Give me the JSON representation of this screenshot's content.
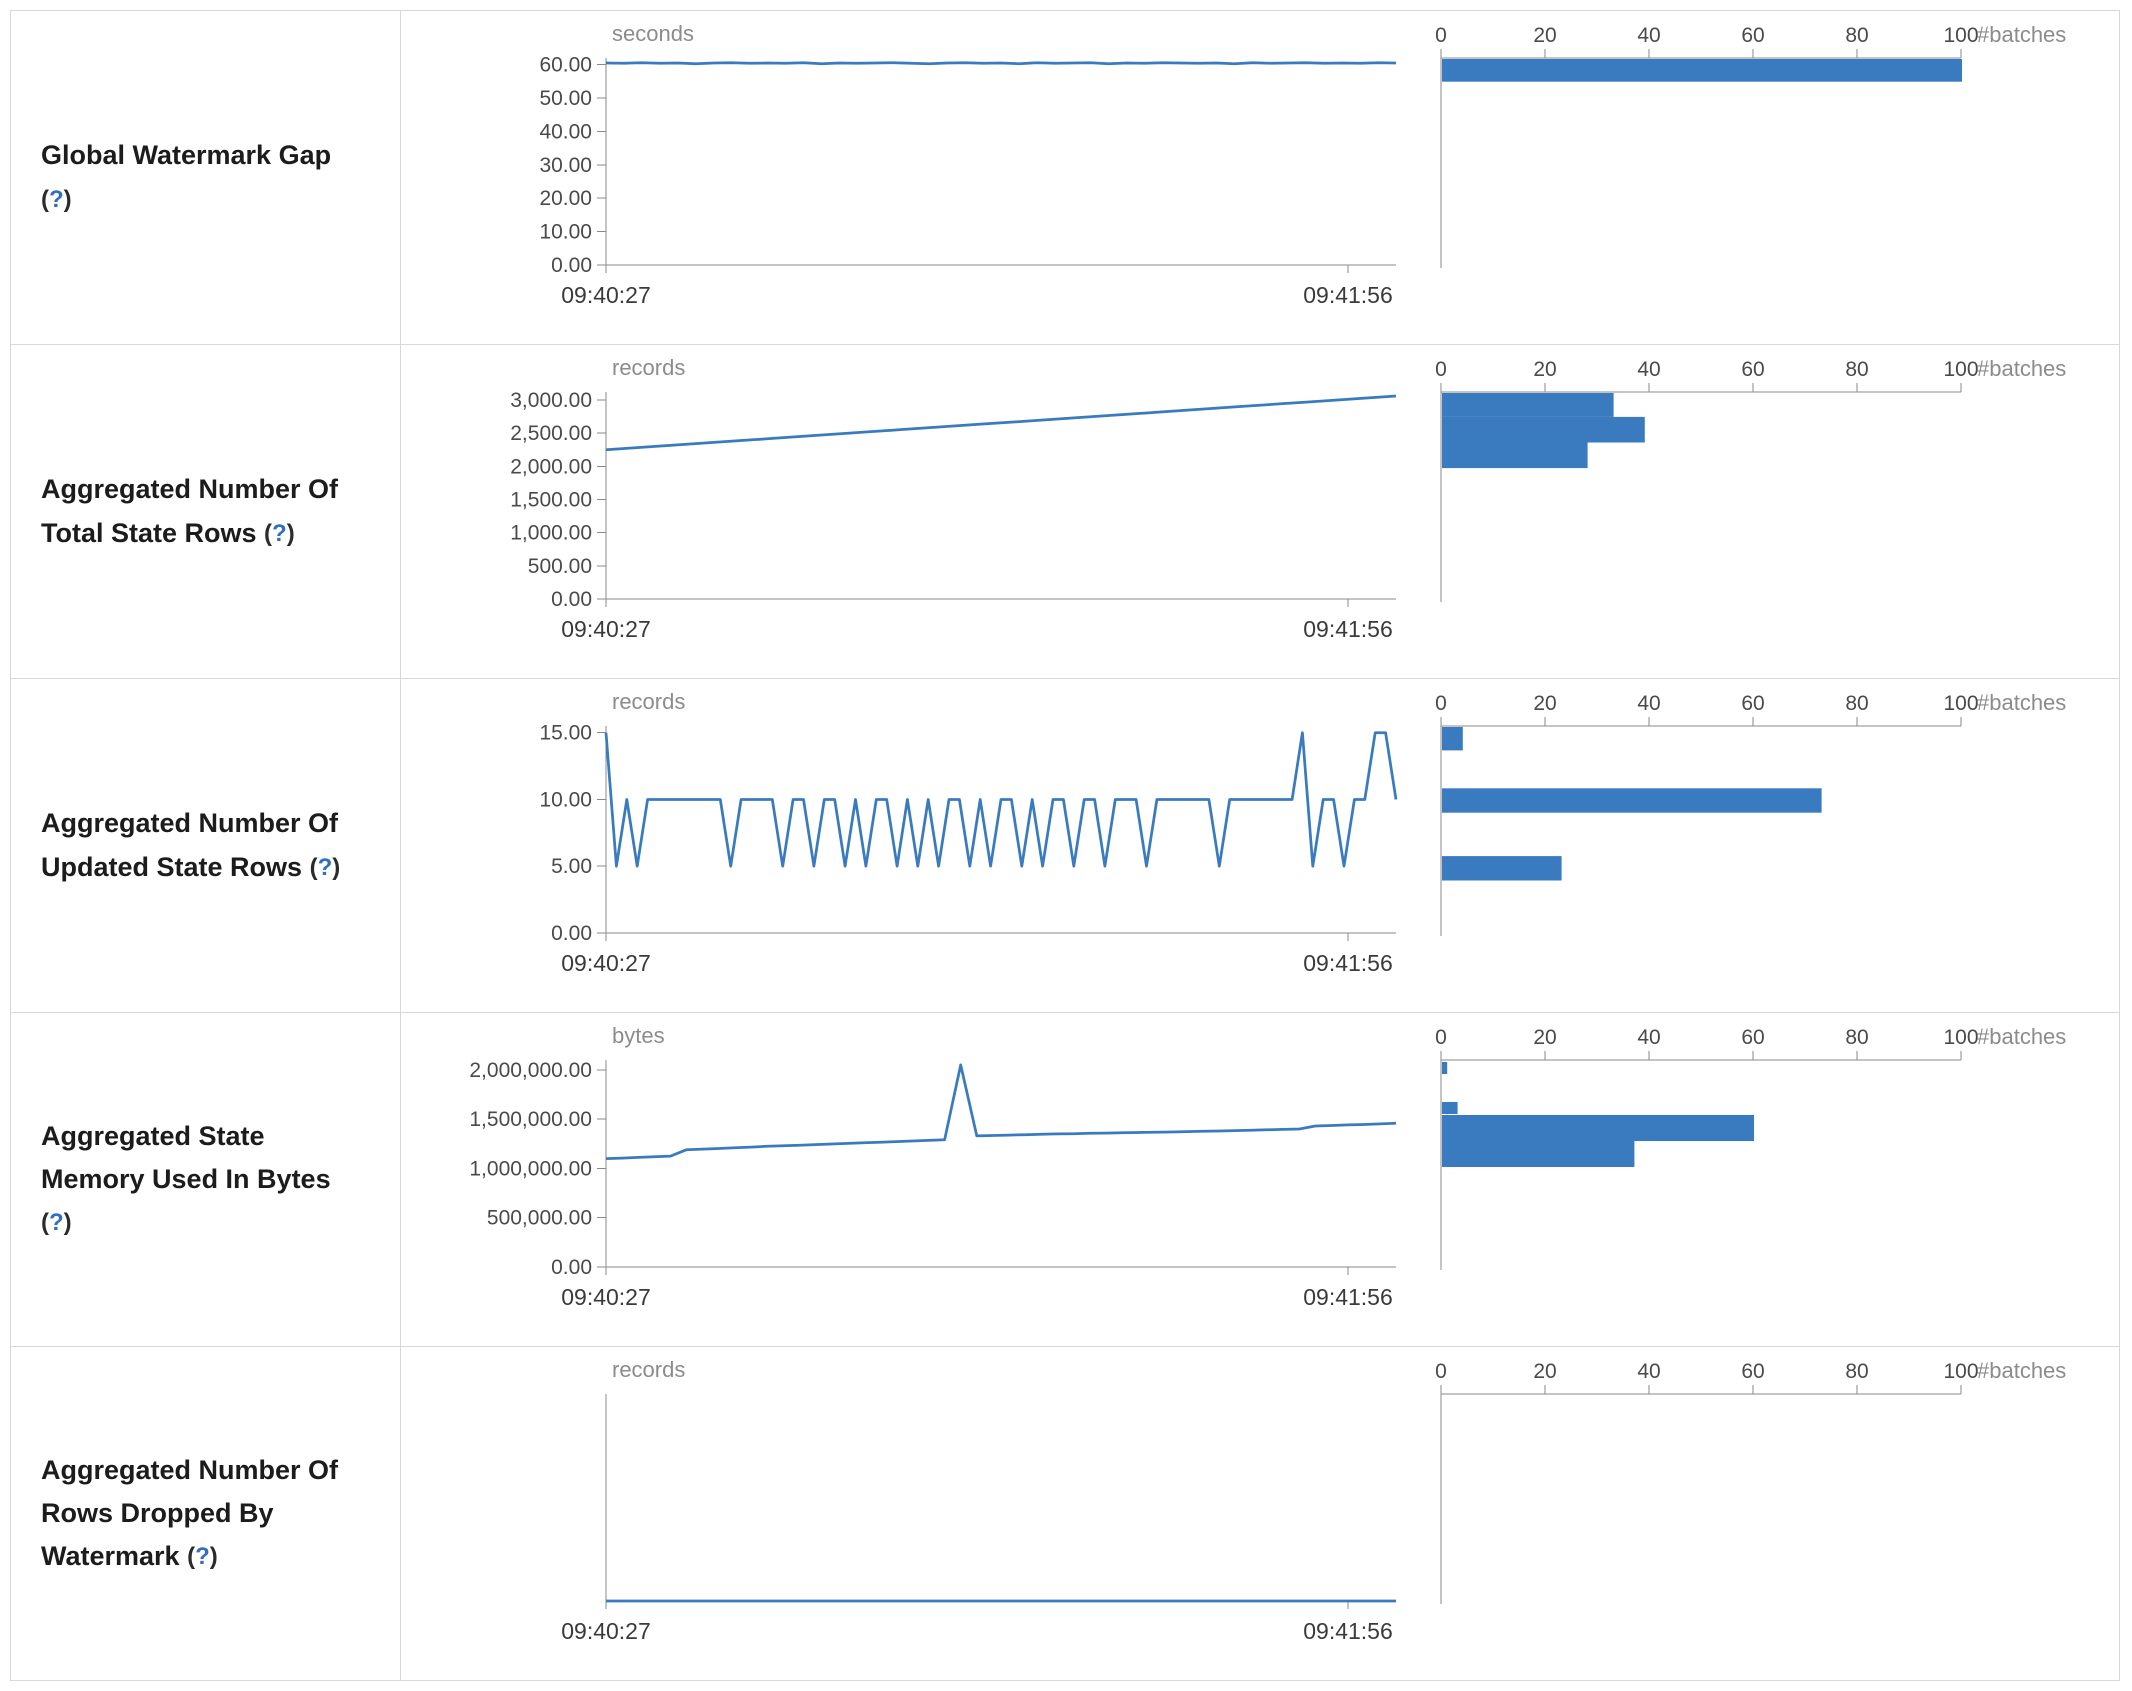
{
  "colors": {
    "accent": "#3a7bbf",
    "axis": "#8a8a8a"
  },
  "ui": {
    "help_open": "(",
    "help_q": "?",
    "help_close": ")"
  },
  "rows": [
    {
      "name": "Global Watermark Gap",
      "timeline": {
        "type": "line",
        "unit": "seconds",
        "ylim": [
          0,
          62
        ],
        "yticks": [
          {
            "v": 60,
            "label": "60.00"
          },
          {
            "v": 50,
            "label": "50.00"
          },
          {
            "v": 40,
            "label": "40.00"
          },
          {
            "v": 30,
            "label": "30.00"
          },
          {
            "v": 20,
            "label": "20.00"
          },
          {
            "v": 10,
            "label": "10.00"
          },
          {
            "v": 0,
            "label": "0.00"
          }
        ],
        "x_start": "09:40:27",
        "x_end": "09:41:56",
        "values": [
          60.5,
          60.4,
          60.6,
          60.4,
          60.5,
          60.3,
          60.5,
          60.6,
          60.4,
          60.5,
          60.4,
          60.6,
          60.3,
          60.5,
          60.4,
          60.5,
          60.6,
          60.4,
          60.3,
          60.5,
          60.6,
          60.4,
          60.5,
          60.3,
          60.6,
          60.4,
          60.5,
          60.6,
          60.3,
          60.5,
          60.4,
          60.6,
          60.5,
          60.4,
          60.5,
          60.3,
          60.6,
          60.4,
          60.5,
          60.6,
          60.4,
          60.5,
          60.4,
          60.6,
          60.5
        ]
      },
      "histogram": {
        "type": "bar",
        "xlabel": "#batches",
        "xticks": [
          0,
          20,
          40,
          60,
          80,
          100
        ],
        "ylim": [
          0,
          62
        ],
        "bars": [
          {
            "value": 58.5,
            "bin": 7,
            "count": 100
          }
        ]
      }
    },
    {
      "name": "Aggregated Number Of Total State Rows",
      "timeline": {
        "type": "line",
        "unit": "records",
        "ylim": [
          0,
          3120
        ],
        "yticks": [
          {
            "v": 3000,
            "label": "3,000.00"
          },
          {
            "v": 2500,
            "label": "2,500.00"
          },
          {
            "v": 2000,
            "label": "2,000.00"
          },
          {
            "v": 1500,
            "label": "1,500.00"
          },
          {
            "v": 1000,
            "label": "1,000.00"
          },
          {
            "v": 500,
            "label": "500.00"
          },
          {
            "v": 0,
            "label": "0.00"
          }
        ],
        "x_start": "09:40:27",
        "x_end": "09:41:56",
        "values": [
          2250,
          2280,
          2310,
          2340,
          2370,
          2400,
          2430,
          2460,
          2490,
          2520,
          2550,
          2580,
          2610,
          2640,
          2670,
          2700,
          2730,
          2760,
          2790,
          2820,
          2850,
          2880,
          2910,
          2940,
          2970,
          3000,
          3030,
          3060
        ]
      },
      "histogram": {
        "type": "bar",
        "xlabel": "#batches",
        "xticks": [
          0,
          20,
          40,
          60,
          80,
          100
        ],
        "ylim": [
          0,
          3120
        ],
        "bars": [
          {
            "value": 2940,
            "bin": 380,
            "count": 33
          },
          {
            "value": 2560,
            "bin": 380,
            "count": 39
          },
          {
            "value": 2180,
            "bin": 380,
            "count": 28
          }
        ]
      }
    },
    {
      "name": "Aggregated Number Of Updated State Rows",
      "timeline": {
        "type": "line",
        "unit": "records",
        "ylim": [
          0,
          15.5
        ],
        "yticks": [
          {
            "v": 15,
            "label": "15.00"
          },
          {
            "v": 10,
            "label": "10.00"
          },
          {
            "v": 5,
            "label": "5.00"
          },
          {
            "v": 0,
            "label": "0.00"
          }
        ],
        "x_start": "09:40:27",
        "x_end": "09:41:56",
        "values": [
          15,
          5,
          10,
          5,
          10,
          10,
          10,
          10,
          10,
          10,
          10,
          10,
          5,
          10,
          10,
          10,
          10,
          5,
          10,
          10,
          5,
          10,
          10,
          5,
          10,
          5,
          10,
          10,
          5,
          10,
          5,
          10,
          5,
          10,
          10,
          5,
          10,
          5,
          10,
          10,
          5,
          10,
          5,
          10,
          10,
          5,
          10,
          10,
          5,
          10,
          10,
          10,
          5,
          10,
          10,
          10,
          10,
          10,
          10,
          5,
          10,
          10,
          10,
          10,
          10,
          10,
          10,
          15,
          5,
          10,
          10,
          5,
          10,
          10,
          15,
          15,
          10
        ]
      },
      "histogram": {
        "type": "bar",
        "xlabel": "#batches",
        "xticks": [
          0,
          20,
          40,
          60,
          80,
          100
        ],
        "ylim": [
          0,
          15.5
        ],
        "bars": [
          {
            "value": 14.6,
            "bin": 1.8,
            "count": 4
          },
          {
            "value": 10,
            "bin": 1.8,
            "count": 73
          },
          {
            "value": 5,
            "bin": 1.8,
            "count": 23
          }
        ]
      }
    },
    {
      "name": "Aggregated State Memory Used In Bytes",
      "timeline": {
        "type": "line",
        "unit": "bytes",
        "ylim": [
          0,
          2100000
        ],
        "yticks": [
          {
            "v": 2000000,
            "label": "2,000,000.00"
          },
          {
            "v": 1500000,
            "label": "1,500,000.00"
          },
          {
            "v": 1000000,
            "label": "1,000,000.00"
          },
          {
            "v": 500000,
            "label": "500,000.00"
          },
          {
            "v": 0,
            "label": "0.00"
          }
        ],
        "x_start": "09:40:27",
        "x_end": "09:41:56",
        "values": [
          1100000,
          1105000,
          1112000,
          1118000,
          1125000,
          1190000,
          1196000,
          1202000,
          1210000,
          1216000,
          1224000,
          1230000,
          1236000,
          1242000,
          1248000,
          1254000,
          1260000,
          1266000,
          1272000,
          1278000,
          1284000,
          1290000,
          2050000,
          1330000,
          1334000,
          1338000,
          1342000,
          1346000,
          1350000,
          1352000,
          1356000,
          1358000,
          1362000,
          1364000,
          1368000,
          1370000,
          1374000,
          1378000,
          1380000,
          1384000,
          1388000,
          1392000,
          1396000,
          1400000,
          1430000,
          1436000,
          1442000,
          1446000,
          1452000,
          1458000
        ]
      },
      "histogram": {
        "type": "bar",
        "xlabel": "#batches",
        "xticks": [
          0,
          20,
          40,
          60,
          80,
          100
        ],
        "ylim": [
          0,
          2100000
        ],
        "bars": [
          {
            "value": 2020000,
            "bin": 120000,
            "count": 1
          },
          {
            "value": 1620000,
            "bin": 120000,
            "count": 3
          },
          {
            "value": 1420000,
            "bin": 260000,
            "count": 60
          },
          {
            "value": 1160000,
            "bin": 260000,
            "count": 37
          }
        ]
      }
    },
    {
      "name": "Aggregated Number Of Rows Dropped By Watermark",
      "timeline": {
        "type": "line",
        "unit": "records",
        "ylim": [
          0,
          1
        ],
        "yticks": [],
        "x_start": "09:40:27",
        "x_end": "09:41:56",
        "values": [
          0,
          0,
          0,
          0,
          0,
          0,
          0,
          0,
          0,
          0,
          0,
          0,
          0,
          0,
          0,
          0,
          0,
          0,
          0,
          0,
          0,
          0,
          0,
          0,
          0
        ]
      },
      "histogram": {
        "type": "bar",
        "xlabel": "#batches",
        "xticks": [
          0,
          20,
          40,
          60,
          80,
          100
        ],
        "ylim": [
          0,
          1
        ],
        "bars": []
      }
    }
  ]
}
